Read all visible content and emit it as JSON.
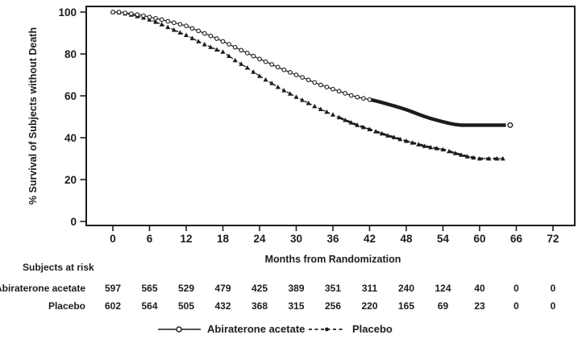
{
  "figure": {
    "background": "#ffffff",
    "ink_color": "#1c1c1c"
  },
  "chart_data": {
    "type": "line",
    "subtype": "kaplan-meier-survival",
    "title": "",
    "xlabel": "Months from Randomization",
    "ylabel": "% Survival of Subjects without Death",
    "xlim": [
      0,
      72
    ],
    "ylim": [
      0,
      100
    ],
    "xticks": [
      0,
      6,
      12,
      18,
      24,
      30,
      36,
      42,
      48,
      54,
      60,
      66,
      72
    ],
    "yticks": [
      0,
      20,
      40,
      60,
      80,
      100
    ],
    "grid": false,
    "legend_position": "bottom-center",
    "series": [
      {
        "name": "Abiraterone acetate",
        "line_style": "solid",
        "marker": "open-circle",
        "marker_until_month": 42,
        "censored_thick_from_month": 42,
        "end_marker": {
          "month": 65,
          "value": 46
        },
        "points": [
          [
            0,
            100
          ],
          [
            1,
            100
          ],
          [
            2,
            99.6
          ],
          [
            3,
            99.2
          ],
          [
            4,
            98.8
          ],
          [
            5,
            98.3
          ],
          [
            6,
            97.6
          ],
          [
            7,
            97
          ],
          [
            8,
            96.4
          ],
          [
            9,
            95.6
          ],
          [
            10,
            94.9
          ],
          [
            11,
            94.2
          ],
          [
            12,
            93.4
          ],
          [
            13,
            92.2
          ],
          [
            14,
            91
          ],
          [
            15,
            89.8
          ],
          [
            16,
            88.6
          ],
          [
            17,
            87.3
          ],
          [
            18,
            86
          ],
          [
            19,
            84.6
          ],
          [
            20,
            83.2
          ],
          [
            21,
            81.8
          ],
          [
            22,
            80.4
          ],
          [
            23,
            79
          ],
          [
            24,
            77.6
          ],
          [
            25,
            76.3
          ],
          [
            26,
            75
          ],
          [
            27,
            73.7
          ],
          [
            28,
            72.4
          ],
          [
            29,
            71.2
          ],
          [
            30,
            70
          ],
          [
            31,
            68.8
          ],
          [
            32,
            67.6
          ],
          [
            33,
            66.4
          ],
          [
            34,
            65.2
          ],
          [
            35,
            64.2
          ],
          [
            36,
            63.2
          ],
          [
            37,
            62.2
          ],
          [
            38,
            61.2
          ],
          [
            39,
            60.2
          ],
          [
            40,
            59.4
          ],
          [
            41,
            58.8
          ],
          [
            42,
            58.2
          ],
          [
            43,
            57.6
          ],
          [
            44,
            56.8
          ],
          [
            45,
            56
          ],
          [
            46,
            55.2
          ],
          [
            47,
            54.3
          ],
          [
            48,
            53.4
          ],
          [
            49,
            52.3
          ],
          [
            50,
            51.2
          ],
          [
            51,
            50.1
          ],
          [
            52,
            49.2
          ],
          [
            53,
            48.4
          ],
          [
            54,
            47.6
          ],
          [
            55,
            46.9
          ],
          [
            56,
            46.3
          ],
          [
            57,
            46
          ],
          [
            64.3,
            46
          ]
        ]
      },
      {
        "name": "Placebo",
        "line_style": "dashed",
        "marker": "filled-triangle",
        "marker_until_month": 64,
        "censored_thick_from_month": 37,
        "points": [
          [
            0,
            100
          ],
          [
            1,
            99.8
          ],
          [
            2,
            99.3
          ],
          [
            3,
            98.7
          ],
          [
            4,
            98
          ],
          [
            5,
            97.3
          ],
          [
            6,
            96.4
          ],
          [
            7,
            95.3
          ],
          [
            8,
            94.1
          ],
          [
            9,
            92.8
          ],
          [
            10,
            91.5
          ],
          [
            11,
            90.2
          ],
          [
            12,
            89
          ],
          [
            13,
            87.5
          ],
          [
            14,
            86
          ],
          [
            15,
            84.6
          ],
          [
            16,
            83.3
          ],
          [
            17,
            82.1
          ],
          [
            18,
            81
          ],
          [
            19,
            79
          ],
          [
            20,
            77
          ],
          [
            21,
            75.2
          ],
          [
            22,
            73.4
          ],
          [
            23,
            71.4
          ],
          [
            24,
            69.5
          ],
          [
            25,
            67.7
          ],
          [
            26,
            66
          ],
          [
            27,
            64.2
          ],
          [
            28,
            62.6
          ],
          [
            29,
            61
          ],
          [
            30,
            59.5
          ],
          [
            31,
            58
          ],
          [
            32,
            56.5
          ],
          [
            33,
            55
          ],
          [
            34,
            53.6
          ],
          [
            35,
            52.3
          ],
          [
            36,
            51
          ],
          [
            37,
            49.7
          ],
          [
            38,
            48.4
          ],
          [
            39,
            47.2
          ],
          [
            40,
            46
          ],
          [
            41,
            45
          ],
          [
            42,
            44
          ],
          [
            43,
            43
          ],
          [
            44,
            42
          ],
          [
            45,
            41
          ],
          [
            46,
            40.2
          ],
          [
            47,
            39.3
          ],
          [
            48,
            38.4
          ],
          [
            49,
            37.6
          ],
          [
            50,
            36.8
          ],
          [
            51,
            36
          ],
          [
            52,
            35.4
          ],
          [
            53,
            34.9
          ],
          [
            54,
            34.4
          ],
          [
            55,
            33.5
          ],
          [
            56,
            32.6
          ],
          [
            57,
            31.8
          ],
          [
            58,
            31
          ],
          [
            59,
            30.5
          ],
          [
            60,
            30
          ],
          [
            61.5,
            30
          ],
          [
            62.8,
            30
          ],
          [
            63.8,
            30
          ]
        ]
      }
    ],
    "at_risk": {
      "title": "Subjects at risk",
      "months": [
        0,
        6,
        12,
        18,
        24,
        30,
        36,
        42,
        48,
        54,
        60,
        66,
        72
      ],
      "rows": [
        {
          "label": "Abiraterone acetate",
          "values": [
            597,
            565,
            529,
            479,
            425,
            389,
            351,
            311,
            240,
            124,
            40,
            0,
            0
          ]
        },
        {
          "label": "Placebo",
          "values": [
            602,
            564,
            505,
            432,
            368,
            315,
            256,
            220,
            165,
            69,
            23,
            0,
            0
          ]
        }
      ]
    }
  }
}
